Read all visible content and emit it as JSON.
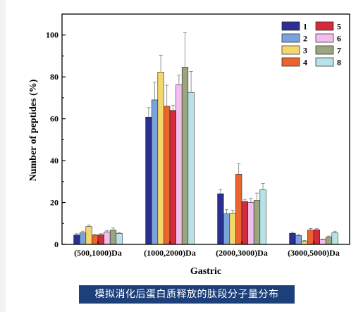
{
  "caption": "模拟消化后蛋白质释放的肽段分子量分布",
  "chart_data": {
    "type": "bar",
    "xlabel": "Gastric",
    "ylabel": "Number of peptides (%)",
    "ylim": [
      0,
      110
    ],
    "yticks": [
      0,
      20,
      40,
      60,
      80,
      100
    ],
    "grid": false,
    "legend_position": "top-right",
    "categories": [
      "(500,1000)Da",
      "(1000,2000)Da",
      "(2000,3000)Da",
      "(3000,5000)Da"
    ],
    "series": [
      {
        "name": "1",
        "color": "#2b2f8f",
        "values": [
          4.5,
          60.8,
          24.2,
          5.3
        ],
        "errors": [
          0.6,
          4.5,
          2.0,
          0.5
        ]
      },
      {
        "name": "2",
        "color": "#7aa3dc",
        "values": [
          5.5,
          69.0,
          14.6,
          4.2
        ],
        "errors": [
          0.8,
          8.5,
          2.0,
          0.5
        ]
      },
      {
        "name": "3",
        "color": "#f3d86d",
        "values": [
          8.5,
          82.3,
          14.8,
          1.6
        ],
        "errors": [
          0.7,
          8.0,
          1.5,
          0.3
        ]
      },
      {
        "name": "4",
        "color": "#e8652e",
        "values": [
          4.4,
          66.0,
          33.5,
          6.8
        ],
        "errors": [
          0.5,
          10.0,
          5.0,
          0.8
        ]
      },
      {
        "name": "5",
        "color": "#d42a3a",
        "values": [
          4.6,
          64.0,
          20.5,
          7.0
        ],
        "errors": [
          0.5,
          2.5,
          1.0,
          0.5
        ]
      },
      {
        "name": "6",
        "color": "#f4bdf0",
        "values": [
          6.0,
          76.3,
          20.0,
          2.2
        ],
        "errors": [
          0.6,
          4.5,
          2.0,
          0.3
        ]
      },
      {
        "name": "7",
        "color": "#9ba57e",
        "values": [
          6.8,
          84.6,
          21.0,
          3.5
        ],
        "errors": [
          1.0,
          16.5,
          3.5,
          0.5
        ]
      },
      {
        "name": "8",
        "color": "#b6e2e8",
        "values": [
          5.3,
          72.6,
          26.1,
          5.5
        ],
        "errors": [
          0.4,
          10.0,
          3.0,
          0.8
        ]
      }
    ]
  }
}
